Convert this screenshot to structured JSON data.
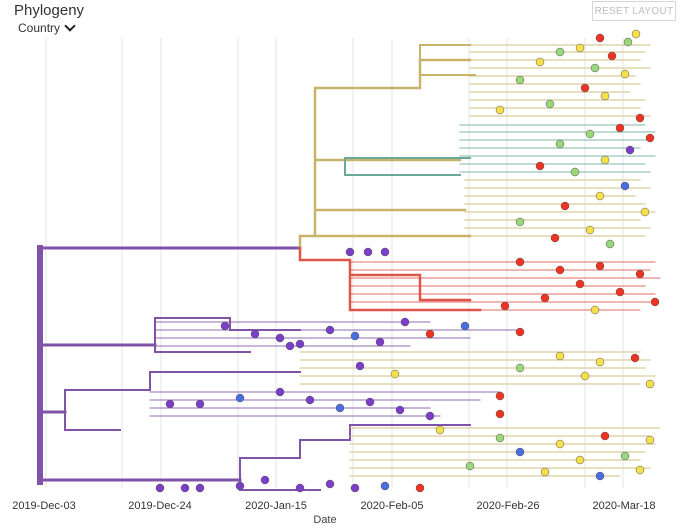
{
  "header": {
    "title": "Phylogeny",
    "color_by_label": "Country",
    "reset_label": "RESET LAYOUT"
  },
  "axis": {
    "title": "Date",
    "ticks": [
      "2019-Dec-03",
      "2019-Dec-24",
      "2020-Jan-15",
      "2020-Feb-05",
      "2020-Feb-26",
      "2020-Mar-18"
    ]
  },
  "colors": {
    "root_branch": "#8052a8",
    "tan_branch": "#c8b46a",
    "teal_branch": "#6ba89a",
    "red_branch": "#dd5548",
    "yellow_tip": "#f4e04a",
    "red_tip": "#ee3322",
    "green_tip": "#9ad67a",
    "purple_tip": "#7a3ec8",
    "blue_tip": "#4a6ee0"
  }
}
